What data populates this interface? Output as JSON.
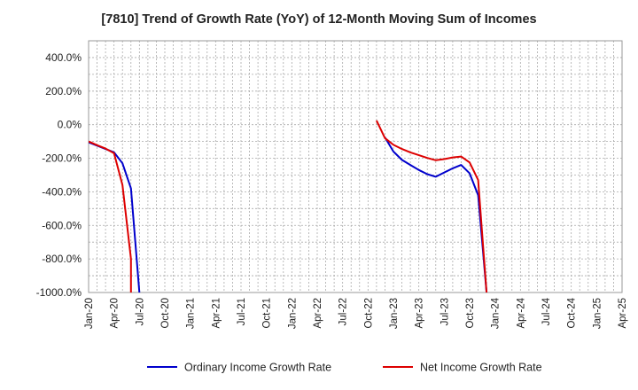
{
  "chart_data": {
    "type": "line",
    "title": "[7810]  Trend of Growth Rate (YoY) of 12-Month Moving Sum of Incomes",
    "xlabel": "",
    "ylabel": "",
    "ylim": [
      -1000,
      500
    ],
    "yticks": [
      400,
      200,
      0,
      -200,
      -400,
      -600,
      -800,
      -1000
    ],
    "ytick_labels": [
      "400.0%",
      "200.0%",
      "0.0%",
      "-200.0%",
      "-400.0%",
      "-600.0%",
      "-800.0%",
      "-1000.0%"
    ],
    "x_range": [
      "2020-01",
      "2025-04"
    ],
    "xtick_labels": [
      "Jan-20",
      "Apr-20",
      "Jul-20",
      "Oct-20",
      "Jan-21",
      "Apr-21",
      "Jul-21",
      "Oct-21",
      "Jan-22",
      "Apr-22",
      "Jul-22",
      "Oct-22",
      "Jan-23",
      "Apr-23",
      "Jul-23",
      "Oct-23",
      "Jan-24",
      "Apr-24",
      "Jul-24",
      "Oct-24",
      "Jan-25",
      "Apr-25"
    ],
    "grid": true,
    "legend_position": "bottom",
    "series": [
      {
        "name": "Ordinary Income Growth Rate",
        "color": "#0000cc",
        "points": [
          {
            "x": "2020-01",
            "y": -105
          },
          {
            "x": "2020-02",
            "y": -125
          },
          {
            "x": "2020-03",
            "y": -145
          },
          {
            "x": "2020-04",
            "y": -165
          },
          {
            "x": "2020-05",
            "y": -230
          },
          {
            "x": "2020-06",
            "y": -380
          },
          {
            "x": "2020-07",
            "y": -1000
          },
          {
            "x": "2022-12",
            "y": -75
          },
          {
            "x": "2023-01",
            "y": -160
          },
          {
            "x": "2023-02",
            "y": -210
          },
          {
            "x": "2023-03",
            "y": -240
          },
          {
            "x": "2023-04",
            "y": -270
          },
          {
            "x": "2023-05",
            "y": -295
          },
          {
            "x": "2023-06",
            "y": -310
          },
          {
            "x": "2023-07",
            "y": -285
          },
          {
            "x": "2023-08",
            "y": -260
          },
          {
            "x": "2023-09",
            "y": -240
          },
          {
            "x": "2023-10",
            "y": -290
          },
          {
            "x": "2023-11",
            "y": -420
          },
          {
            "x": "2023-12",
            "y": -1000
          }
        ]
      },
      {
        "name": "Net Income Growth Rate",
        "color": "#dd0000",
        "points": [
          {
            "x": "2020-01",
            "y": -100
          },
          {
            "x": "2020-02",
            "y": -122
          },
          {
            "x": "2020-03",
            "y": -142
          },
          {
            "x": "2020-04",
            "y": -170
          },
          {
            "x": "2020-05",
            "y": -360
          },
          {
            "x": "2020-06",
            "y": -800
          },
          {
            "x": "2020-06",
            "y": -1000
          },
          {
            "x": "2022-11",
            "y": 25
          },
          {
            "x": "2022-12",
            "y": -80
          },
          {
            "x": "2023-01",
            "y": -120
          },
          {
            "x": "2023-02",
            "y": -145
          },
          {
            "x": "2023-03",
            "y": -165
          },
          {
            "x": "2023-04",
            "y": -182
          },
          {
            "x": "2023-05",
            "y": -198
          },
          {
            "x": "2023-06",
            "y": -212
          },
          {
            "x": "2023-07",
            "y": -205
          },
          {
            "x": "2023-08",
            "y": -195
          },
          {
            "x": "2023-09",
            "y": -190
          },
          {
            "x": "2023-10",
            "y": -225
          },
          {
            "x": "2023-11",
            "y": -330
          },
          {
            "x": "2023-12",
            "y": -1000
          }
        ]
      }
    ]
  }
}
